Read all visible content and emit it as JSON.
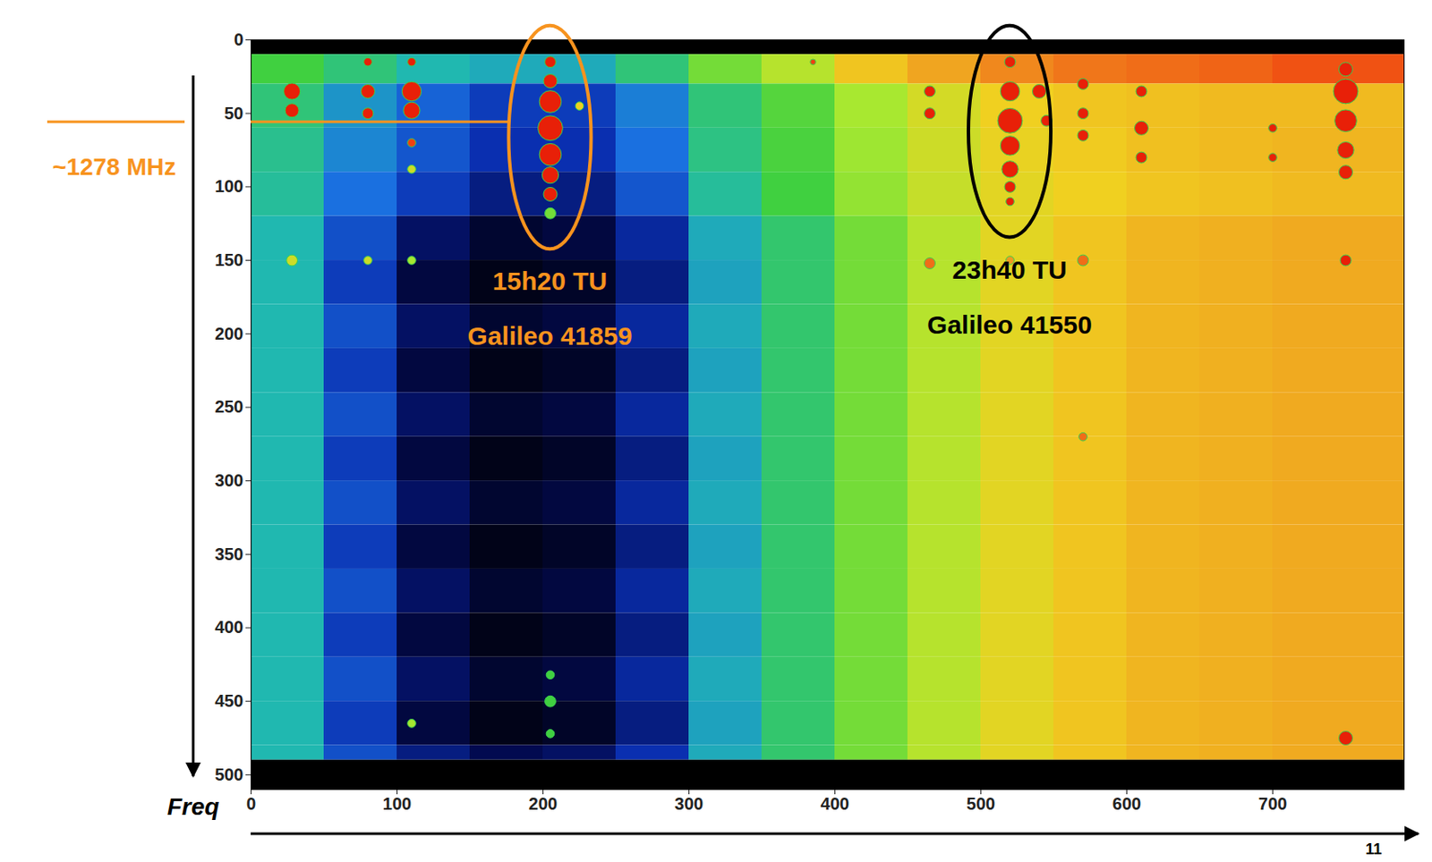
{
  "chart_data": {
    "type": "heatmap",
    "y_label": "Freq",
    "xlim": [
      0,
      790
    ],
    "xticks": [
      0,
      100,
      200,
      300,
      400,
      500,
      600,
      700
    ],
    "ylim": [
      0,
      510
    ],
    "yticks": [
      0,
      50,
      100,
      150,
      200,
      250,
      300,
      350,
      400,
      450,
      500
    ],
    "x_edges": [
      0,
      50,
      100,
      150,
      200,
      250,
      300,
      350,
      400,
      450,
      500,
      550,
      600,
      650,
      700,
      750,
      800
    ],
    "y_edges": [
      0,
      10,
      30,
      60,
      90,
      120,
      150,
      180,
      210,
      240,
      270,
      300,
      330,
      360,
      390,
      420,
      450,
      480,
      490,
      510
    ],
    "cells": [
      [
        0,
        0,
        0,
        0,
        0,
        0,
        0,
        0,
        0,
        0,
        0,
        0,
        0,
        0,
        0,
        0
      ],
      [
        50,
        45,
        40,
        38,
        38,
        45,
        55,
        62,
        72,
        78,
        82,
        84,
        85,
        86,
        88,
        88
      ],
      [
        45,
        35,
        28,
        22,
        22,
        32,
        45,
        52,
        60,
        66,
        70,
        72,
        73,
        74,
        74,
        74
      ],
      [
        43,
        33,
        26,
        20,
        20,
        30,
        44,
        51,
        59,
        65,
        69,
        71,
        73,
        74,
        75,
        75
      ],
      [
        42,
        30,
        22,
        15,
        15,
        26,
        42,
        50,
        58,
        64,
        68,
        70,
        72,
        73,
        74,
        74
      ],
      [
        40,
        25,
        12,
        6,
        8,
        18,
        38,
        46,
        55,
        62,
        68,
        72,
        75,
        76,
        77,
        77
      ],
      [
        40,
        22,
        8,
        3,
        5,
        15,
        37,
        46,
        55,
        62,
        68,
        72,
        75,
        76,
        77,
        77
      ],
      [
        40,
        25,
        12,
        6,
        8,
        18,
        38,
        46,
        55,
        62,
        68,
        72,
        75,
        76,
        77,
        77
      ],
      [
        40,
        22,
        8,
        3,
        5,
        15,
        37,
        46,
        55,
        62,
        68,
        72,
        75,
        76,
        77,
        77
      ],
      [
        40,
        25,
        12,
        6,
        8,
        18,
        38,
        46,
        55,
        62,
        68,
        72,
        75,
        76,
        77,
        77
      ],
      [
        40,
        22,
        8,
        3,
        5,
        15,
        37,
        46,
        55,
        62,
        68,
        72,
        75,
        76,
        77,
        77
      ],
      [
        40,
        25,
        12,
        6,
        8,
        18,
        38,
        46,
        55,
        62,
        68,
        72,
        75,
        76,
        77,
        77
      ],
      [
        40,
        22,
        8,
        3,
        5,
        15,
        37,
        46,
        55,
        62,
        68,
        72,
        75,
        76,
        77,
        77
      ],
      [
        40,
        25,
        12,
        6,
        8,
        18,
        38,
        46,
        55,
        62,
        68,
        72,
        75,
        76,
        77,
        77
      ],
      [
        40,
        22,
        8,
        3,
        5,
        15,
        37,
        46,
        55,
        62,
        68,
        72,
        75,
        76,
        77,
        77
      ],
      [
        40,
        25,
        12,
        6,
        8,
        18,
        38,
        46,
        55,
        62,
        68,
        72,
        75,
        76,
        77,
        77
      ],
      [
        40,
        22,
        8,
        3,
        5,
        15,
        37,
        46,
        55,
        62,
        68,
        72,
        75,
        76,
        77,
        77
      ],
      [
        40,
        25,
        15,
        10,
        12,
        20,
        38,
        46,
        55,
        62,
        68,
        72,
        75,
        76,
        77,
        77
      ],
      [
        0,
        0,
        0,
        0,
        0,
        0,
        0,
        0,
        0,
        0,
        0,
        0,
        0,
        0,
        0,
        0
      ]
    ],
    "zlim": [
      0,
      100
    ],
    "spots": {
      "x": [
        28,
        28,
        28,
        80,
        80,
        80,
        80,
        110,
        110,
        110,
        110,
        110,
        110,
        110,
        205,
        205,
        205,
        205,
        205,
        205,
        205,
        205,
        205,
        205,
        205,
        225,
        385,
        465,
        465,
        465,
        520,
        520,
        520,
        520,
        520,
        520,
        520,
        540,
        545,
        520,
        570,
        570,
        570,
        570,
        570,
        610,
        610,
        610,
        700,
        700,
        750,
        750,
        750,
        750,
        750,
        750,
        750
      ],
      "y": [
        35,
        48,
        150,
        15,
        35,
        50,
        150,
        15,
        35,
        48,
        70,
        88,
        150,
        465,
        15,
        28,
        42,
        60,
        78,
        92,
        105,
        118,
        432,
        450,
        472,
        45,
        15,
        35,
        50,
        152,
        15,
        35,
        55,
        72,
        88,
        100,
        110,
        35,
        55,
        150,
        30,
        50,
        65,
        150,
        270,
        35,
        60,
        80,
        60,
        80,
        20,
        35,
        55,
        75,
        90,
        150,
        475
      ],
      "size": [
        6,
        5,
        4,
        3,
        5,
        4,
        3,
        3,
        7,
        6,
        3,
        3,
        3,
        3,
        4,
        5,
        8,
        9,
        8,
        6,
        5,
        4,
        3,
        4,
        3,
        3,
        2,
        4,
        4,
        4,
        4,
        7,
        9,
        7,
        6,
        4,
        3,
        5,
        4,
        3,
        4,
        4,
        4,
        4,
        3,
        4,
        5,
        4,
        3,
        3,
        5,
        9,
        8,
        6,
        5,
        4,
        5
      ],
      "values": [
        95,
        95,
        65,
        95,
        95,
        95,
        65,
        95,
        95,
        95,
        90,
        65,
        60,
        60,
        95,
        95,
        95,
        95,
        95,
        95,
        95,
        55,
        50,
        50,
        50,
        70,
        90,
        95,
        95,
        85,
        95,
        95,
        95,
        95,
        95,
        95,
        95,
        95,
        95,
        80,
        95,
        95,
        95,
        85,
        85,
        95,
        95,
        95,
        95,
        95,
        95,
        95,
        95,
        95,
        95,
        95,
        95
      ]
    },
    "annotations": [
      {
        "lines": [
          "15h20 TU",
          "Galileo 41859"
        ],
        "x": 205,
        "color": "#f7931e"
      },
      {
        "lines": [
          "23h40 TU",
          "Galileo 41550"
        ],
        "x": 520,
        "color": "#000000"
      }
    ],
    "marker": {
      "text": "~1278 MHz",
      "y": 56,
      "color": "#f7931e"
    },
    "page_number": "11"
  }
}
